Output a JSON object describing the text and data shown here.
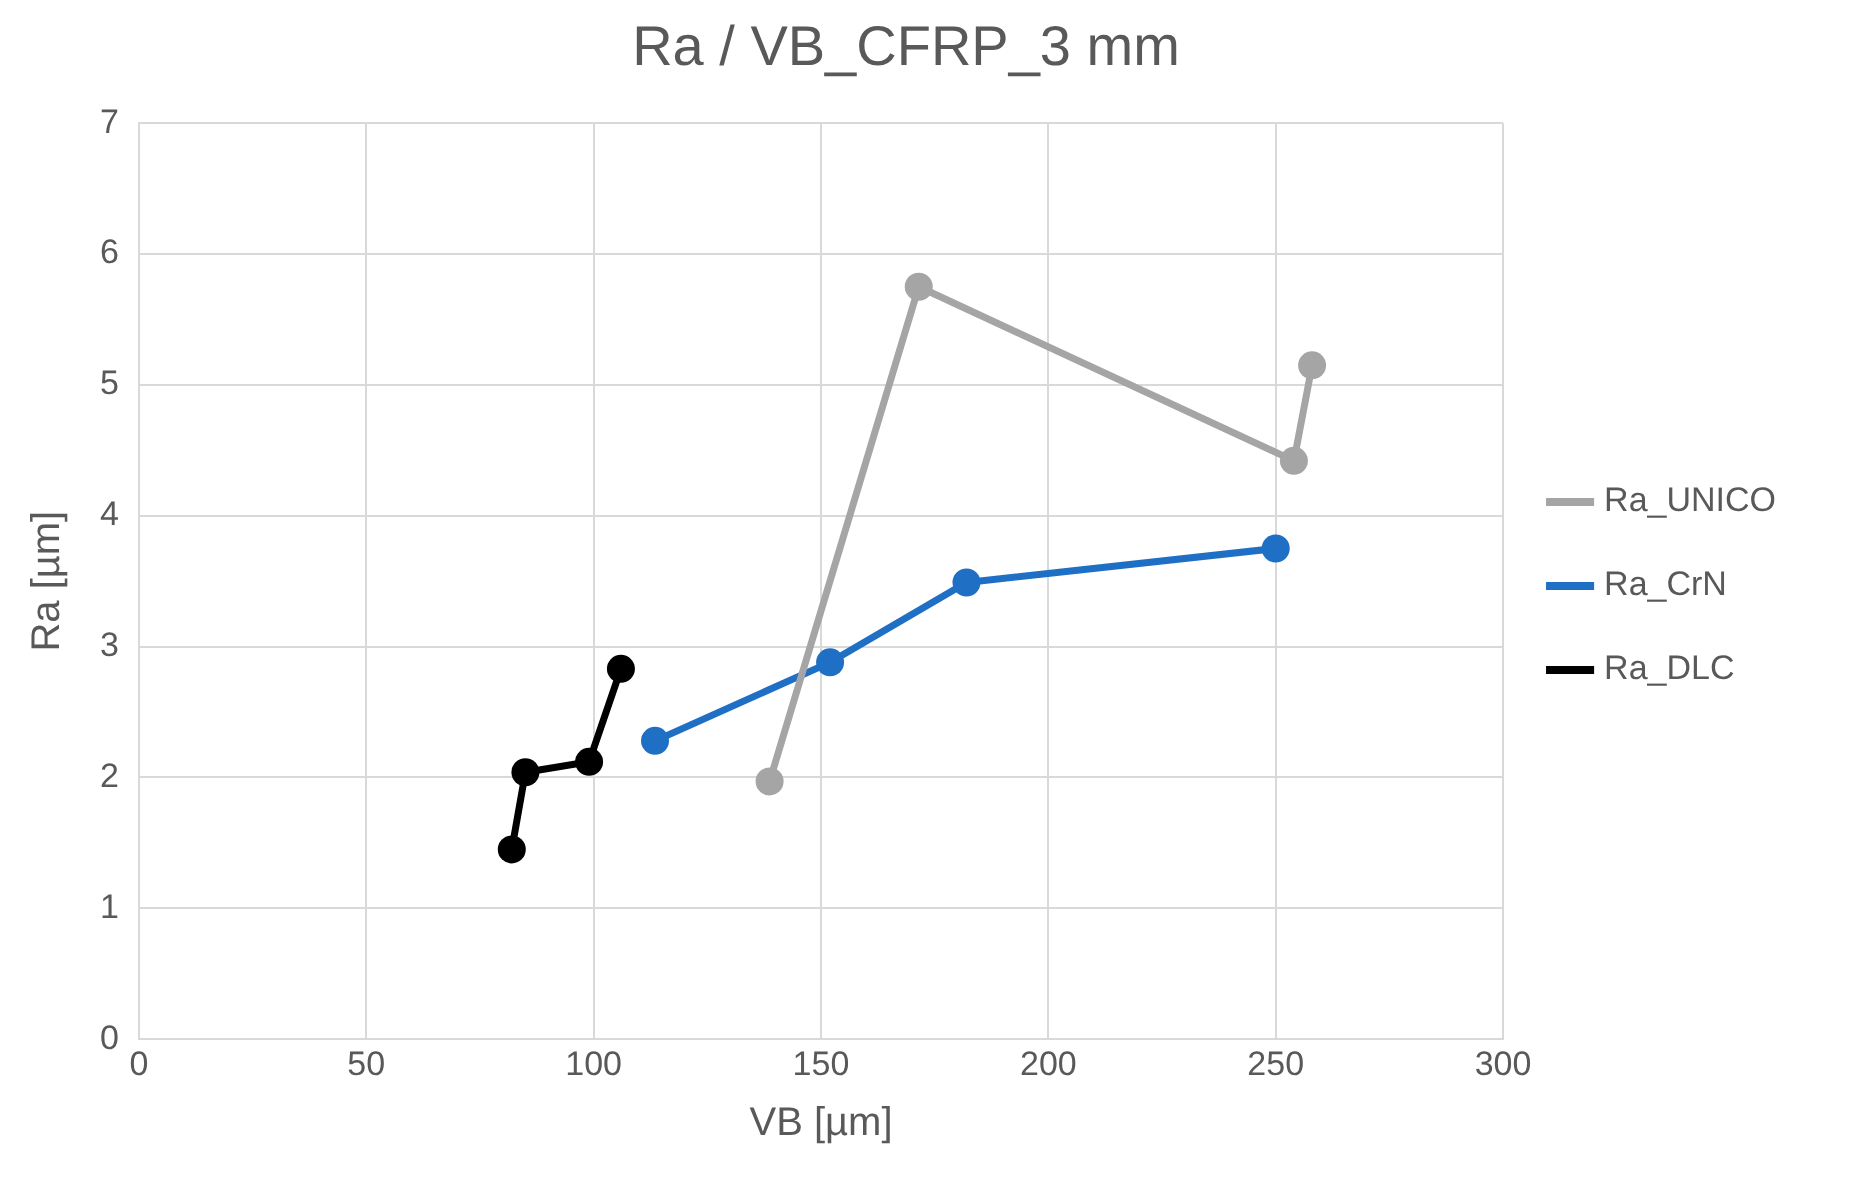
{
  "chart_data": {
    "type": "line",
    "title": "Ra / VB_CFRP_3 mm",
    "xlabel": "VB [µm]",
    "ylabel": "Ra [µm]",
    "xlim": [
      0,
      300
    ],
    "xticks": [
      0,
      50,
      100,
      150,
      200,
      250,
      300
    ],
    "ylim": [
      0,
      7
    ],
    "yticks": [
      0,
      1,
      2,
      3,
      4,
      5,
      6,
      7
    ],
    "grid": true,
    "legend": "right",
    "marker": "circle",
    "line_style": "solid",
    "series": [
      {
        "name": "Ra_UNICO",
        "color": "#a5a5a5",
        "x": [
          138.7,
          171.5,
          254,
          258
        ],
        "values": [
          1.97,
          5.75,
          4.42,
          5.15
        ]
      },
      {
        "name": "Ra_CrN",
        "color": "#1f6fc5",
        "x": [
          113.5,
          152,
          182,
          250
        ],
        "values": [
          2.28,
          2.88,
          3.49,
          3.75
        ]
      },
      {
        "name": "Ra_DLC",
        "color": "#000000",
        "x": [
          82,
          85,
          99,
          106
        ],
        "values": [
          1.45,
          2.04,
          2.12,
          2.83
        ]
      }
    ]
  }
}
